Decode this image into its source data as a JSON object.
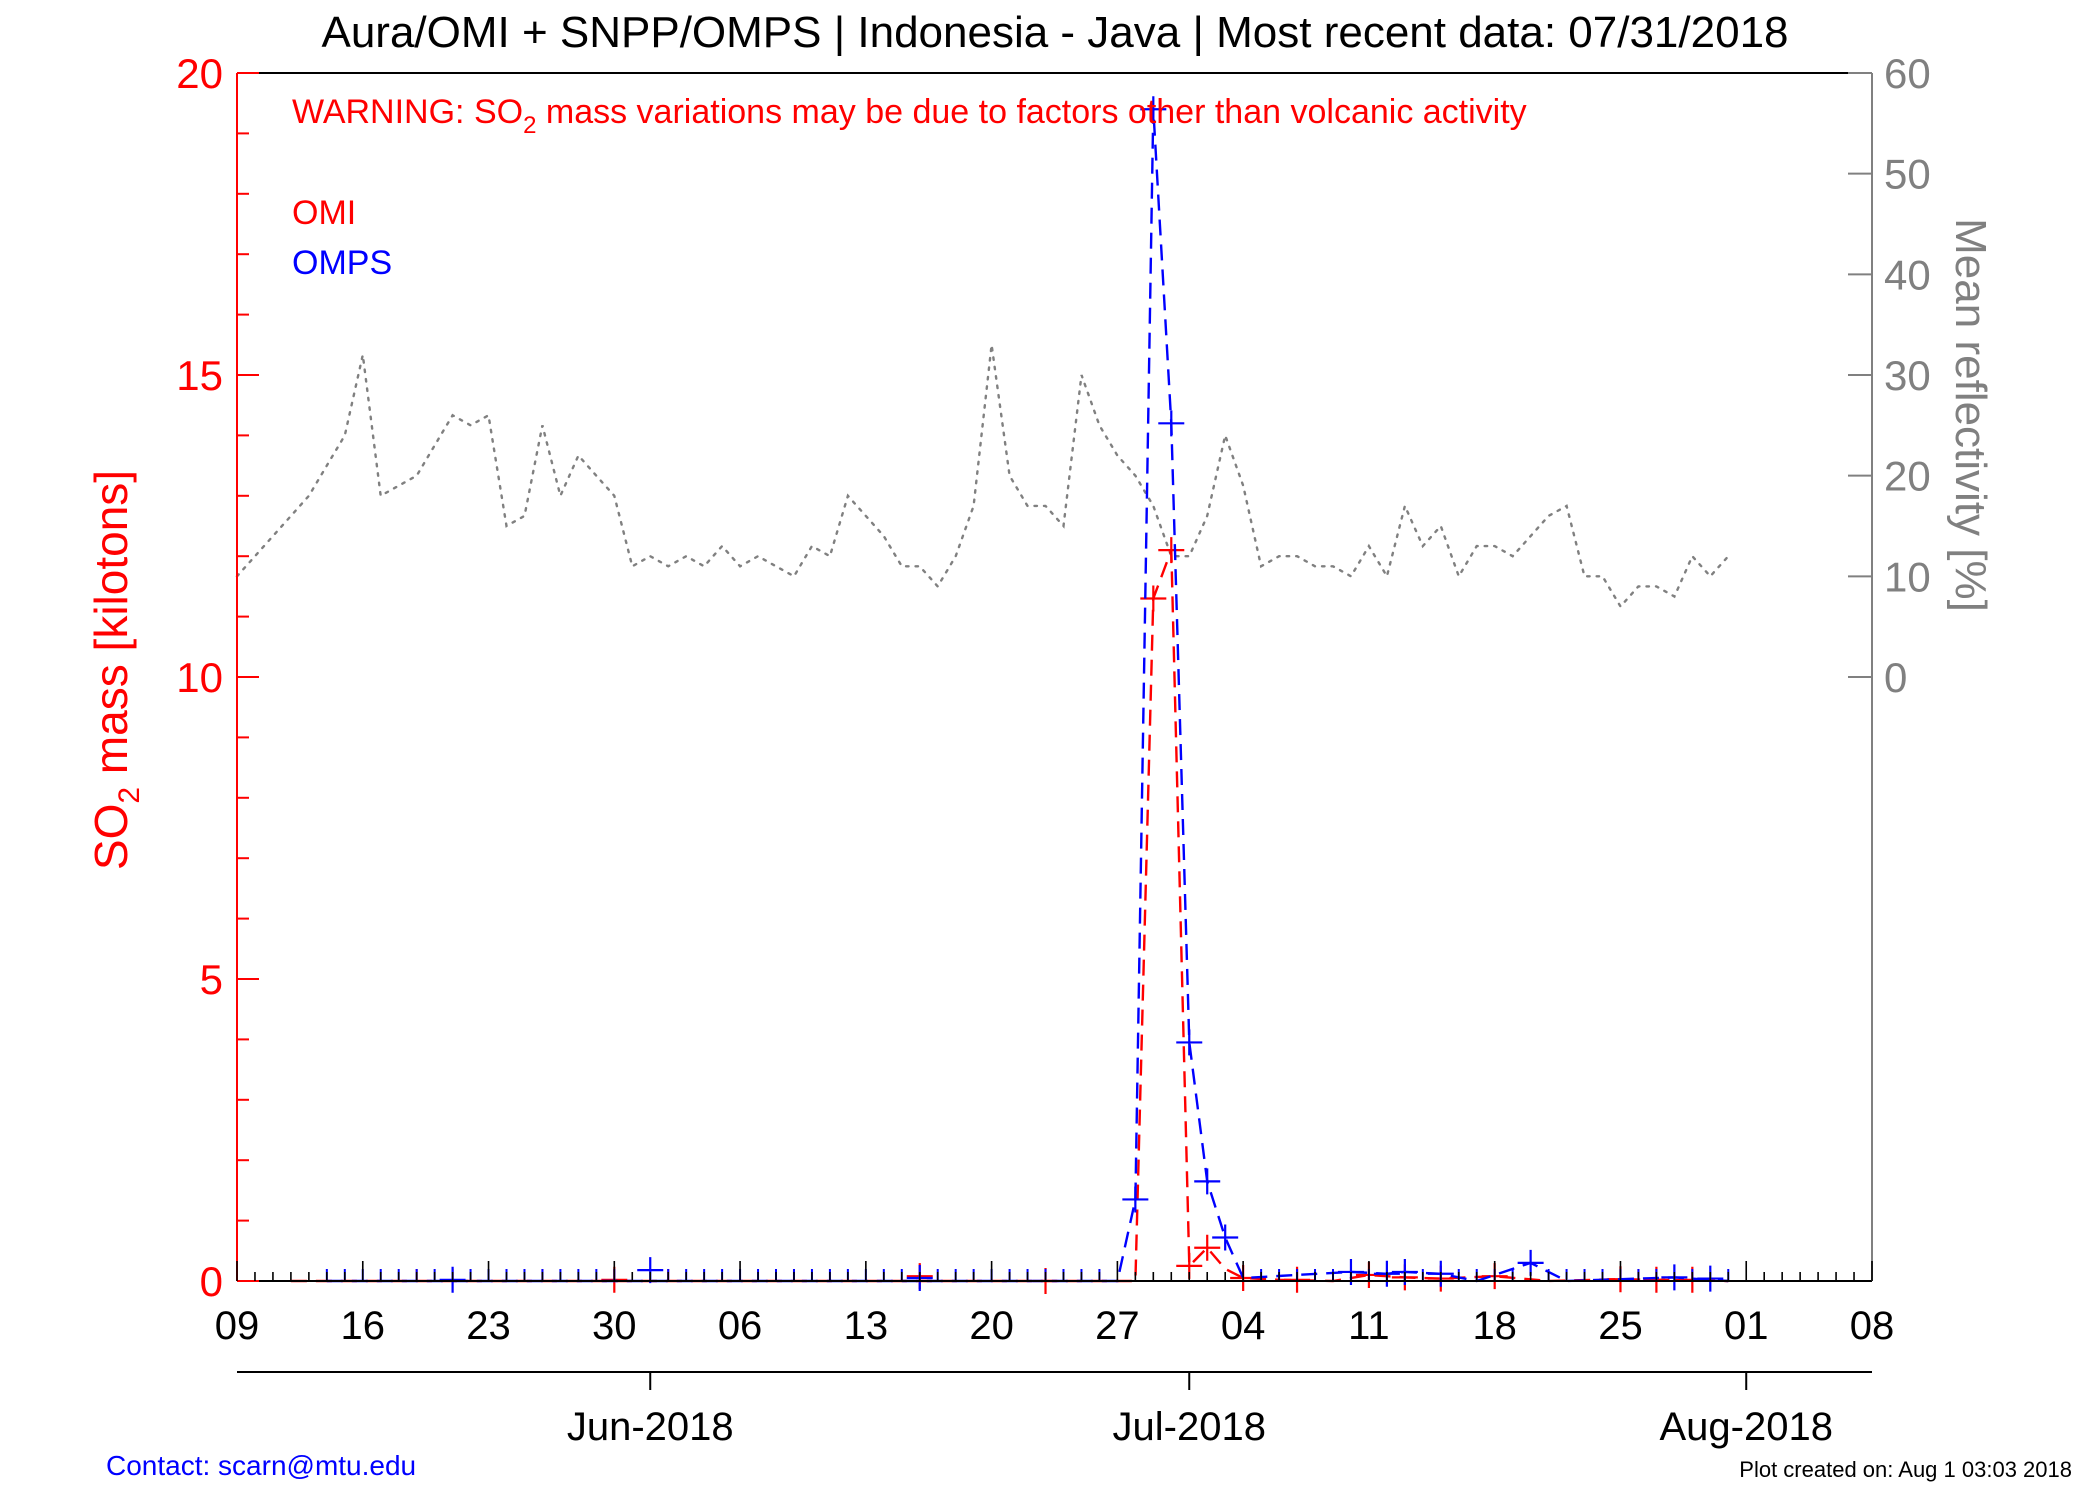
{
  "title": "Aura/OMI + SNPP/OMPS | Indonesia - Java | Most recent data: 07/31/2018",
  "warning": {
    "prefix": "WARNING: SO",
    "subscript": "2",
    "suffix": " mass variations may be due to factors other than volcanic activity"
  },
  "ylabel_left": {
    "prefix": "SO",
    "subscript": "2",
    "suffix": " mass [kilotons]"
  },
  "ylabel_right": "Mean reflectivity [%]",
  "footer": {
    "contact": "Contact: scarn@mtu.edu",
    "created": "Plot created on: Aug  1 03:03 2018"
  },
  "colors": {
    "omi": "#ff0000",
    "omps": "#0000ff",
    "reflectivity": "#808080",
    "axis_left": "#ff0000",
    "axis_right": "#808080"
  },
  "chart_data": {
    "type": "line",
    "x_unit": "date",
    "xlim": [
      "2018-05-09",
      "2018-08-08"
    ],
    "x_ticks": [
      {
        "date": "2018-05-09",
        "label": "09"
      },
      {
        "date": "2018-05-16",
        "label": "16"
      },
      {
        "date": "2018-05-23",
        "label": "23"
      },
      {
        "date": "2018-05-30",
        "label": "30"
      },
      {
        "date": "2018-06-06",
        "label": "06"
      },
      {
        "date": "2018-06-13",
        "label": "13"
      },
      {
        "date": "2018-06-20",
        "label": "20"
      },
      {
        "date": "2018-06-27",
        "label": "27"
      },
      {
        "date": "2018-07-04",
        "label": "04"
      },
      {
        "date": "2018-07-11",
        "label": "11"
      },
      {
        "date": "2018-07-18",
        "label": "18"
      },
      {
        "date": "2018-07-25",
        "label": "25"
      },
      {
        "date": "2018-08-01",
        "label": "01"
      },
      {
        "date": "2018-08-08",
        "label": "08"
      }
    ],
    "months": [
      {
        "date": "2018-06-01",
        "label": "Jun-2018"
      },
      {
        "date": "2018-07-01",
        "label": "Jul-2018"
      },
      {
        "date": "2018-08-01",
        "label": "Aug-2018"
      }
    ],
    "y_left": {
      "label": "SO2 mass [kilotons]",
      "ylim": [
        0,
        20
      ],
      "ticks": [
        0,
        5,
        10,
        15,
        20
      ]
    },
    "y_right": {
      "label": "Mean reflectivity [%]",
      "ylim": [
        -60,
        60
      ],
      "ticks": [
        0,
        10,
        20,
        30,
        40,
        50,
        60
      ]
    },
    "legend": {
      "placement": "top-left",
      "entries": [
        "OMI",
        "OMPS"
      ]
    },
    "series": [
      {
        "name": "OMI",
        "axis": "left",
        "style": "dashed",
        "markers": [
          {
            "date": "2018-05-30",
            "value": 0.02
          },
          {
            "date": "2018-06-16",
            "value": 0.08
          },
          {
            "date": "2018-06-23",
            "value": 0.0
          },
          {
            "date": "2018-06-29",
            "value": 11.3
          },
          {
            "date": "2018-06-30",
            "value": 12.1
          },
          {
            "date": "2018-07-01",
            "value": 0.25
          },
          {
            "date": "2018-07-02",
            "value": 0.55
          },
          {
            "date": "2018-07-04",
            "value": 0.05
          },
          {
            "date": "2018-07-07",
            "value": 0.02
          },
          {
            "date": "2018-07-11",
            "value": 0.1
          },
          {
            "date": "2018-07-13",
            "value": 0.06
          },
          {
            "date": "2018-07-15",
            "value": 0.04
          },
          {
            "date": "2018-07-18",
            "value": 0.08
          },
          {
            "date": "2018-07-25",
            "value": 0.03
          },
          {
            "date": "2018-07-27",
            "value": 0.02
          },
          {
            "date": "2018-07-29",
            "value": 0.02
          }
        ],
        "line": [
          [
            "2018-05-12",
            0.0
          ],
          [
            "2018-06-28",
            0.0
          ],
          [
            "2018-06-29",
            11.3
          ],
          [
            "2018-06-30",
            12.1
          ],
          [
            "2018-07-01",
            0.25
          ],
          [
            "2018-07-02",
            0.55
          ],
          [
            "2018-07-03",
            0.2
          ],
          [
            "2018-07-04",
            0.05
          ],
          [
            "2018-07-06",
            0.02
          ],
          [
            "2018-07-09",
            0.0
          ],
          [
            "2018-07-11",
            0.1
          ],
          [
            "2018-07-13",
            0.06
          ],
          [
            "2018-07-15",
            0.04
          ],
          [
            "2018-07-18",
            0.08
          ],
          [
            "2018-07-21",
            0.0
          ],
          [
            "2018-07-25",
            0.03
          ],
          [
            "2018-07-31",
            0.0
          ]
        ],
        "baseline_ticks": [
          "2018-05-19",
          "2018-05-21",
          "2018-05-26",
          "2018-06-02",
          "2018-06-09",
          "2018-06-23",
          "2018-07-07",
          "2018-07-24",
          "2018-07-26"
        ]
      },
      {
        "name": "OMPS",
        "axis": "left",
        "style": "dashed",
        "markers": [
          {
            "date": "2018-05-21",
            "value": 0.02
          },
          {
            "date": "2018-06-01",
            "value": 0.18
          },
          {
            "date": "2018-06-16",
            "value": 0.05
          },
          {
            "date": "2018-06-28",
            "value": 1.35
          },
          {
            "date": "2018-06-29",
            "value": 19.4
          },
          {
            "date": "2018-06-30",
            "value": 14.2
          },
          {
            "date": "2018-07-01",
            "value": 3.95
          },
          {
            "date": "2018-07-02",
            "value": 1.65
          },
          {
            "date": "2018-07-03",
            "value": 0.72
          },
          {
            "date": "2018-07-10",
            "value": 0.15
          },
          {
            "date": "2018-07-12",
            "value": 0.12
          },
          {
            "date": "2018-07-13",
            "value": 0.15
          },
          {
            "date": "2018-07-15",
            "value": 0.12
          },
          {
            "date": "2018-07-20",
            "value": 0.3
          },
          {
            "date": "2018-07-28",
            "value": 0.06
          },
          {
            "date": "2018-07-30",
            "value": 0.04
          }
        ],
        "line": [
          [
            "2018-05-14",
            0.0
          ],
          [
            "2018-06-27",
            0.0
          ],
          [
            "2018-06-28",
            1.35
          ],
          [
            "2018-06-29",
            19.4
          ],
          [
            "2018-06-30",
            14.2
          ],
          [
            "2018-07-01",
            3.95
          ],
          [
            "2018-07-02",
            1.65
          ],
          [
            "2018-07-03",
            0.72
          ],
          [
            "2018-07-04",
            0.05
          ],
          [
            "2018-07-10",
            0.15
          ],
          [
            "2018-07-12",
            0.12
          ],
          [
            "2018-07-13",
            0.15
          ],
          [
            "2018-07-15",
            0.12
          ],
          [
            "2018-07-17",
            0.0
          ],
          [
            "2018-07-20",
            0.3
          ],
          [
            "2018-07-22",
            0.0
          ],
          [
            "2018-07-28",
            0.06
          ],
          [
            "2018-07-31",
            0.0
          ]
        ],
        "baseline_ticks": [
          "2018-05-14",
          "2018-05-15",
          "2018-05-16",
          "2018-05-17",
          "2018-05-18",
          "2018-05-19",
          "2018-05-20",
          "2018-05-22",
          "2018-05-23",
          "2018-05-24",
          "2018-05-25",
          "2018-05-26",
          "2018-05-27",
          "2018-05-28",
          "2018-05-29",
          "2018-05-30",
          "2018-06-02",
          "2018-06-03",
          "2018-06-04",
          "2018-06-05",
          "2018-06-06",
          "2018-06-07",
          "2018-06-08",
          "2018-06-09",
          "2018-06-10",
          "2018-06-11",
          "2018-06-12",
          "2018-06-13",
          "2018-06-14",
          "2018-06-15",
          "2018-06-17",
          "2018-06-18",
          "2018-06-19",
          "2018-06-20",
          "2018-06-21",
          "2018-06-22",
          "2018-06-23",
          "2018-06-24",
          "2018-06-25",
          "2018-06-26",
          "2018-07-05",
          "2018-07-06",
          "2018-07-07",
          "2018-07-08",
          "2018-07-09",
          "2018-07-11",
          "2018-07-14",
          "2018-07-16",
          "2018-07-17",
          "2018-07-18",
          "2018-07-19",
          "2018-07-21",
          "2018-07-22",
          "2018-07-23",
          "2018-07-24",
          "2018-07-25",
          "2018-07-26",
          "2018-07-27",
          "2018-07-29",
          "2018-07-31"
        ]
      },
      {
        "name": "Mean reflectivity",
        "axis": "right",
        "style": "dotted",
        "points": [
          [
            "2018-05-09",
            10
          ],
          [
            "2018-05-11",
            14
          ],
          [
            "2018-05-13",
            18
          ],
          [
            "2018-05-14",
            21
          ],
          [
            "2018-05-15",
            24
          ],
          [
            "2018-05-16",
            32
          ],
          [
            "2018-05-17",
            18
          ],
          [
            "2018-05-18",
            19
          ],
          [
            "2018-05-19",
            20
          ],
          [
            "2018-05-20",
            23
          ],
          [
            "2018-05-21",
            26
          ],
          [
            "2018-05-22",
            25
          ],
          [
            "2018-05-23",
            26
          ],
          [
            "2018-05-24",
            15
          ],
          [
            "2018-05-25",
            16
          ],
          [
            "2018-05-26",
            25
          ],
          [
            "2018-05-27",
            18
          ],
          [
            "2018-05-28",
            22
          ],
          [
            "2018-05-29",
            20
          ],
          [
            "2018-05-30",
            18
          ],
          [
            "2018-05-31",
            11
          ],
          [
            "2018-06-01",
            12
          ],
          [
            "2018-06-02",
            11
          ],
          [
            "2018-06-03",
            12
          ],
          [
            "2018-06-04",
            11
          ],
          [
            "2018-06-05",
            13
          ],
          [
            "2018-06-06",
            11
          ],
          [
            "2018-06-07",
            12
          ],
          [
            "2018-06-08",
            11
          ],
          [
            "2018-06-09",
            10
          ],
          [
            "2018-06-10",
            13
          ],
          [
            "2018-06-11",
            12
          ],
          [
            "2018-06-12",
            18
          ],
          [
            "2018-06-13",
            16
          ],
          [
            "2018-06-14",
            14
          ],
          [
            "2018-06-15",
            11
          ],
          [
            "2018-06-16",
            11
          ],
          [
            "2018-06-17",
            9
          ],
          [
            "2018-06-18",
            12
          ],
          [
            "2018-06-19",
            17
          ],
          [
            "2018-06-20",
            33
          ],
          [
            "2018-06-21",
            20
          ],
          [
            "2018-06-22",
            17
          ],
          [
            "2018-06-23",
            17
          ],
          [
            "2018-06-24",
            15
          ],
          [
            "2018-06-25",
            30
          ],
          [
            "2018-06-26",
            25
          ],
          [
            "2018-06-27",
            22
          ],
          [
            "2018-06-28",
            20
          ],
          [
            "2018-06-29",
            17
          ],
          [
            "2018-06-30",
            12
          ],
          [
            "2018-07-01",
            12
          ],
          [
            "2018-07-02",
            16
          ],
          [
            "2018-07-03",
            24
          ],
          [
            "2018-07-04",
            19
          ],
          [
            "2018-07-05",
            11
          ],
          [
            "2018-07-06",
            12
          ],
          [
            "2018-07-07",
            12
          ],
          [
            "2018-07-08",
            11
          ],
          [
            "2018-07-09",
            11
          ],
          [
            "2018-07-10",
            10
          ],
          [
            "2018-07-11",
            13
          ],
          [
            "2018-07-12",
            10
          ],
          [
            "2018-07-13",
            17
          ],
          [
            "2018-07-14",
            13
          ],
          [
            "2018-07-15",
            15
          ],
          [
            "2018-07-16",
            10
          ],
          [
            "2018-07-17",
            13
          ],
          [
            "2018-07-18",
            13
          ],
          [
            "2018-07-19",
            12
          ],
          [
            "2018-07-20",
            14
          ],
          [
            "2018-07-21",
            16
          ],
          [
            "2018-07-22",
            17
          ],
          [
            "2018-07-23",
            10
          ],
          [
            "2018-07-24",
            10
          ],
          [
            "2018-07-25",
            7
          ],
          [
            "2018-07-26",
            9
          ],
          [
            "2018-07-27",
            9
          ],
          [
            "2018-07-28",
            8
          ],
          [
            "2018-07-29",
            12
          ],
          [
            "2018-07-30",
            10
          ],
          [
            "2018-07-31",
            12
          ]
        ]
      }
    ]
  }
}
